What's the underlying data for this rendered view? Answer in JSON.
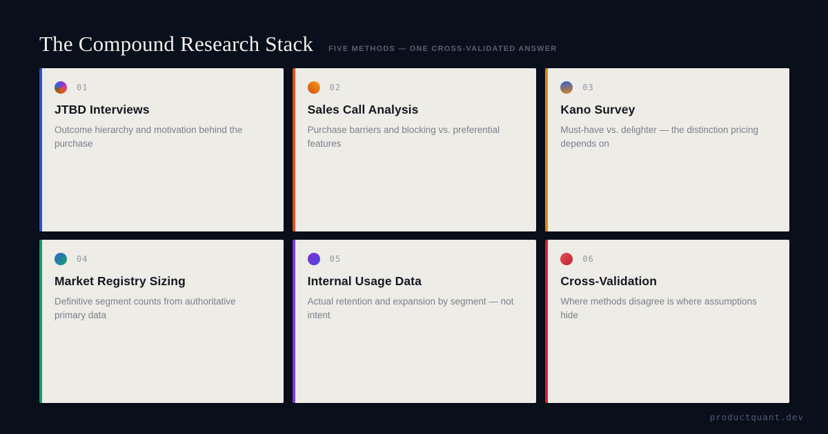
{
  "page": {
    "title": "The Compound Research Stack",
    "subtitle": "FIVE METHODS — ONE CROSS-VALIDATED ANSWER",
    "footer": "productquant.dev",
    "colors": {
      "background": "#0a0f1c",
      "card_background": "#edece6",
      "title_text": "#f2f0ea",
      "subtitle_text": "#596070",
      "card_title_text": "#14181f",
      "card_desc_text": "#7b808a",
      "number_text": "#9299a4",
      "footer_text": "#4e5b73"
    }
  },
  "cards": [
    {
      "number": "01",
      "title": "JTBD Interviews",
      "description": "Outcome hierarchy and motivation behind the purchase",
      "accent": "#2b50cf",
      "icon": {
        "name": "gradient-pie-icon",
        "type": "conic",
        "angle": 300,
        "colors": [
          "#2e63d8",
          "#7c3fd8",
          "#d6368b",
          "#e05a22",
          "#9a5a18",
          "#2e63d8"
        ]
      }
    },
    {
      "number": "02",
      "title": "Sales Call Analysis",
      "description": "Purchase barriers and blocking vs. preferential features",
      "accent": "#dd5217",
      "icon": {
        "name": "gradient-dot-icon",
        "type": "linear",
        "angle": 225,
        "colors": [
          "#f9a11b",
          "#d4490f"
        ]
      }
    },
    {
      "number": "03",
      "title": "Kano Survey",
      "description": "Must-have vs. delighter — the distinction pricing depends on",
      "accent": "#d8880e",
      "icon": {
        "name": "gradient-dot-icon",
        "type": "linear",
        "angle": 170,
        "colors": [
          "#2e5fd4",
          "#d9821a"
        ]
      }
    },
    {
      "number": "04",
      "title": "Market Registry Sizing",
      "description": "Definitive segment counts from authoritative primary data",
      "accent": "#16996a",
      "icon": {
        "name": "gradient-dot-icon",
        "type": "linear",
        "angle": 135,
        "colors": [
          "#2e62d0",
          "#17a06b"
        ]
      }
    },
    {
      "number": "05",
      "title": "Internal Usage Data",
      "description": "Actual retention and expansion by segment — not intent",
      "accent": "#8238dd",
      "icon": {
        "name": "gradient-dot-icon",
        "type": "linear",
        "angle": 135,
        "colors": [
          "#7c2fd2",
          "#4f46e5"
        ]
      }
    },
    {
      "number": "06",
      "title": "Cross-Validation",
      "description": "Where methods disagree is where assumptions hide",
      "accent": "#d51f31",
      "icon": {
        "name": "gradient-dot-icon",
        "type": "linear",
        "angle": 135,
        "colors": [
          "#e4525a",
          "#c01f2e"
        ]
      }
    }
  ]
}
